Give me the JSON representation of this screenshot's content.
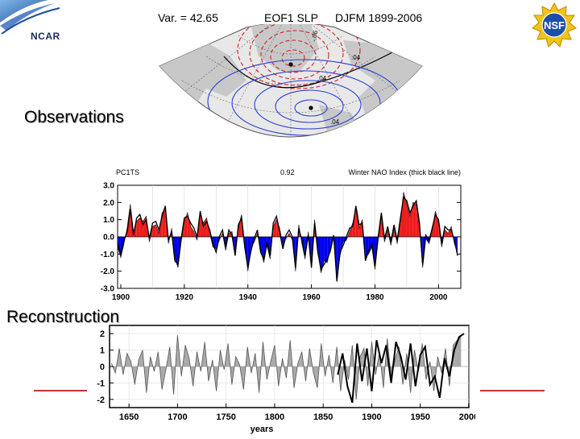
{
  "header": {
    "ncar_logo_text": "NCAR",
    "nsf_logo_text": "NSF",
    "map_title": {
      "variance": "Var. = 42.65",
      "name": "EOF1 SLP",
      "period": "DJFM 1899-2006"
    }
  },
  "map": {
    "contour_labels": [
      "-.06",
      ".04",
      ".04",
      ".04"
    ],
    "colors": {
      "positive": "#2b3fd6",
      "negative": "#d42020",
      "zero": "#000000",
      "land": "#c8c8c8",
      "ocean": "#e8e8e8"
    }
  },
  "labels": {
    "observations": "Observations",
    "reconstruction": "Reconstruction"
  },
  "chart_data": [
    {
      "type": "area",
      "title_left": "PC1TS",
      "correlation": "0.92",
      "title_right": "Winter NAO Index (thick black line)",
      "xlim": [
        1899,
        2007
      ],
      "ylim": [
        -3.0,
        3.0
      ],
      "xticks": [
        "1900",
        "1920",
        "1940",
        "1960",
        "1980",
        "2000"
      ],
      "yticks": [
        "3.0",
        "2.0",
        "1.0",
        "0.0",
        "-1.0",
        "-2.0",
        "-3.0"
      ],
      "colors": {
        "positive": "#ee1c1c",
        "negative": "#0000ee",
        "nao_line": "#000000"
      },
      "years": [
        1899,
        1900,
        1901,
        1902,
        1903,
        1904,
        1905,
        1906,
        1907,
        1908,
        1909,
        1910,
        1911,
        1912,
        1913,
        1914,
        1915,
        1916,
        1917,
        1918,
        1919,
        1920,
        1921,
        1922,
        1923,
        1924,
        1925,
        1926,
        1927,
        1928,
        1929,
        1930,
        1931,
        1932,
        1933,
        1934,
        1935,
        1936,
        1937,
        1938,
        1939,
        1940,
        1941,
        1942,
        1943,
        1944,
        1945,
        1946,
        1947,
        1948,
        1949,
        1950,
        1951,
        1952,
        1953,
        1954,
        1955,
        1956,
        1957,
        1958,
        1959,
        1960,
        1961,
        1962,
        1963,
        1964,
        1965,
        1966,
        1967,
        1968,
        1969,
        1970,
        1971,
        1972,
        1973,
        1974,
        1975,
        1976,
        1977,
        1978,
        1979,
        1980,
        1981,
        1982,
        1983,
        1984,
        1985,
        1986,
        1987,
        1988,
        1989,
        1990,
        1991,
        1992,
        1993,
        1994,
        1995,
        1996,
        1997,
        1998,
        1999,
        2000,
        2001,
        2002,
        2003,
        2004,
        2005,
        2006
      ],
      "pc1": [
        -0.6,
        -1.2,
        -0.4,
        0.5,
        1.9,
        0.3,
        0.9,
        1.1,
        0.9,
        1.2,
        -0.3,
        0.6,
        0.7,
        0.2,
        1.4,
        1.6,
        -0.4,
        0.5,
        -1.2,
        -1.8,
        -0.3,
        0.9,
        1.4,
        0.6,
        0.3,
        -0.2,
        1.3,
        0.8,
        1.1,
        0.2,
        -0.6,
        -0.7,
        -0.2,
        0.2,
        -0.8,
        0.2,
        0.3,
        -0.9,
        0.5,
        1.3,
        -0.4,
        -2.0,
        -0.6,
        -0.3,
        0.2,
        -0.7,
        -1.5,
        -0.5,
        -1.3,
        0.6,
        1.0,
        0.5,
        -0.5,
        -0.1,
        0.2,
        -0.2,
        -2.0,
        0.7,
        -0.4,
        -1.3,
        0.3,
        -1.6,
        1.0,
        -0.7,
        -2.1,
        -1.4,
        -1.5,
        -0.6,
        -0.1,
        -2.5,
        -1.1,
        -0.3,
        -0.2,
        0.3,
        0.8,
        1.6,
        0.5,
        1.0,
        -1.2,
        -1.0,
        -0.6,
        -1.9,
        -0.2,
        1.2,
        -0.3,
        0.4,
        -0.5,
        0.5,
        -0.4,
        0.9,
        2.6,
        1.9,
        1.2,
        2.0,
        1.9,
        0.6,
        -1.8,
        -0.1,
        -0.4,
        0.3,
        1.5,
        0.8,
        -0.6,
        0.4,
        0.2,
        0.6,
        -0.4,
        -0.9
      ],
      "nao": [
        -0.4,
        -1.0,
        -0.2,
        0.3,
        1.6,
        0.1,
        1.1,
        1.3,
        0.7,
        1.0,
        -0.1,
        0.8,
        0.9,
        0.4,
        1.2,
        1.8,
        -0.2,
        0.3,
        -1.4,
        -1.6,
        -0.1,
        1.1,
        1.2,
        0.8,
        0.5,
        0.0,
        1.5,
        0.6,
        0.9,
        0.4,
        -0.4,
        -0.9,
        0.0,
        0.4,
        -0.6,
        0.4,
        0.1,
        -1.1,
        0.7,
        1.1,
        -0.6,
        -1.8,
        -0.8,
        -0.1,
        0.4,
        -0.9,
        -1.3,
        -0.3,
        -1.1,
        0.8,
        1.2,
        0.3,
        -0.7,
        0.1,
        0.4,
        0.0,
        -1.8,
        0.5,
        -0.2,
        -1.1,
        0.1,
        -1.8,
        0.8,
        -0.9,
        -1.9,
        -1.6,
        -1.3,
        -0.8,
        0.1,
        -2.6,
        -0.9,
        -0.5,
        0.0,
        0.5,
        0.6,
        1.8,
        0.7,
        0.8,
        -1.4,
        -0.8,
        -0.4,
        -1.7,
        0.0,
        1.4,
        -0.1,
        0.6,
        -0.3,
        0.7,
        -0.2,
        1.1,
        2.3,
        2.1,
        1.4,
        1.8,
        2.1,
        0.8,
        -1.6,
        0.1,
        -0.2,
        0.5,
        1.3,
        1.0,
        -0.4,
        0.6,
        0.4,
        0.4,
        -0.2,
        -1.1
      ]
    },
    {
      "type": "line",
      "xlabel": "years",
      "xlim": [
        1630,
        2000
      ],
      "ylim": [
        -2.5,
        2.5
      ],
      "xticks": [
        "1650",
        "1700",
        "1750",
        "1800",
        "1850",
        "1900",
        "1950",
        "2000"
      ],
      "yticks": [
        "2",
        "1",
        "0",
        "-1",
        "-2"
      ],
      "colors": {
        "reconstruction_fill": "#aaaaaa",
        "reconstruction_line": "#555555",
        "observed_line": "#000000"
      },
      "reconstruction_x": [
        1632,
        1636,
        1640,
        1644,
        1648,
        1652,
        1656,
        1660,
        1664,
        1668,
        1672,
        1676,
        1680,
        1684,
        1688,
        1692,
        1696,
        1700,
        1704,
        1708,
        1712,
        1716,
        1720,
        1724,
        1728,
        1732,
        1736,
        1740,
        1744,
        1748,
        1752,
        1756,
        1760,
        1764,
        1768,
        1772,
        1776,
        1780,
        1784,
        1788,
        1792,
        1796,
        1800,
        1804,
        1808,
        1812,
        1816,
        1820,
        1824,
        1828,
        1832,
        1836,
        1840,
        1844,
        1848,
        1852,
        1856,
        1860,
        1864,
        1868,
        1872,
        1876,
        1880,
        1884,
        1888,
        1892,
        1896,
        1900,
        1904,
        1908,
        1912,
        1916,
        1920,
        1924,
        1928,
        1932,
        1936,
        1940,
        1944,
        1948,
        1952,
        1956,
        1960,
        1964,
        1968,
        1972,
        1976,
        1980,
        1984,
        1988,
        1992
      ],
      "reconstruction_y": [
        0.2,
        -0.4,
        1.1,
        -0.5,
        0.8,
        0.3,
        -1.1,
        0.4,
        1.0,
        -1.6,
        0.6,
        -0.3,
        0.9,
        -1.4,
        -0.2,
        1.2,
        -1.7,
        1.9,
        -0.6,
        1.3,
        0.5,
        -1.2,
        0.9,
        -0.3,
        1.5,
        -0.9,
        0.4,
        -1.5,
        1.0,
        -0.2,
        1.4,
        -1.1,
        0.6,
        0.1,
        -1.4,
        1.2,
        -0.4,
        0.8,
        -1.6,
        1.5,
        -0.8,
        0.3,
        1.3,
        -1.2,
        0.5,
        -0.7,
        1.6,
        -1.3,
        0.2,
        0.9,
        -0.9,
        1.1,
        -0.4,
        -1.3,
        1.4,
        -0.6,
        0.7,
        -1.0,
        1.2,
        -1.5,
        0.4,
        -0.8,
        1.3,
        -2.0,
        0.6,
        1.1,
        -1.2,
        1.5,
        -0.5,
        0.9,
        -1.3,
        1.7,
        -0.7,
        0.4,
        1.2,
        -1.1,
        0.8,
        -1.6,
        1.0,
        -0.3,
        1.4,
        -0.8,
        0.3,
        -1.5,
        0.6,
        -0.4,
        1.1,
        -1.2,
        1.3,
        1.6,
        1.8
      ],
      "observed_x": [
        1865,
        1870,
        1875,
        1880,
        1885,
        1890,
        1895,
        1900,
        1905,
        1910,
        1915,
        1920,
        1925,
        1930,
        1935,
        1940,
        1945,
        1950,
        1955,
        1960,
        1965,
        1970,
        1975,
        1980,
        1985,
        1990,
        1995
      ],
      "observed_y": [
        -0.5,
        0.8,
        -1.2,
        -2.2,
        1.4,
        -0.9,
        1.1,
        -1.5,
        1.6,
        0.2,
        1.3,
        -1.0,
        1.5,
        0.6,
        -0.8,
        1.4,
        -1.2,
        0.7,
        1.2,
        -1.1,
        -0.6,
        -1.9,
        0.5,
        -0.6,
        1.0,
        1.8,
        2.0
      ]
    }
  ]
}
